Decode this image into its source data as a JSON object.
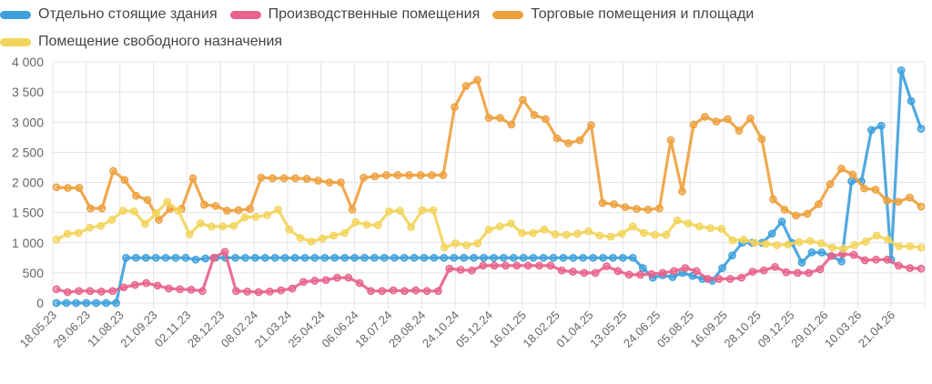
{
  "chart_data": {
    "type": "line",
    "title": "",
    "xlabel": "",
    "ylabel": "",
    "ylim": [
      0,
      4000
    ],
    "y_ticks": [
      "0",
      "500",
      "1 000",
      "1 500",
      "2 000",
      "2 500",
      "3 000",
      "3 500",
      "4 000"
    ],
    "grid": true,
    "legend_position": "top",
    "x_tick_labels": [
      "18.05.23",
      "29.06.23",
      "11.08.23",
      "21.09.23",
      "02.11.23",
      "28.12.23",
      "08.02.24",
      "21.03.24",
      "25.04.24",
      "06.06.24",
      "18.07.24",
      "29.08.24",
      "24.10.24",
      "05.12.24",
      "16.01.25",
      "18.02.25",
      "01.04.25",
      "13.05.25",
      "24.06.25",
      "05.08.25",
      "16.09.25",
      "28.10.25",
      "09.12.25",
      "29.01.26",
      "10.03.26",
      "21.04.26"
    ],
    "series": [
      {
        "name": "Отдельно стоящие здания",
        "color": "#3ea0dc",
        "values": [
          0,
          0,
          0,
          0,
          0,
          0,
          0,
          750,
          750,
          750,
          750,
          750,
          750,
          750,
          720,
          740,
          750,
          750,
          750,
          750,
          750,
          750,
          750,
          750,
          750,
          750,
          750,
          750,
          750,
          750,
          750,
          750,
          750,
          750,
          750,
          750,
          750,
          750,
          750,
          750,
          750,
          750,
          750,
          750,
          750,
          750,
          750,
          750,
          750,
          750,
          750,
          750,
          750,
          750,
          750,
          750,
          750,
          750,
          750,
          580,
          420,
          460,
          430,
          500,
          450,
          400,
          370,
          580,
          790,
          1000,
          1000,
          1000,
          1150,
          1350,
          1000,
          670,
          840,
          840,
          780,
          690,
          2020,
          2020,
          2870,
          2940,
          720,
          3860,
          3350,
          2890
        ]
      },
      {
        "name": "Производственные помещения",
        "color": "#e8628a",
        "values": [
          230,
          180,
          200,
          200,
          190,
          200,
          260,
          300,
          330,
          290,
          240,
          230,
          220,
          200,
          750,
          850,
          200,
          190,
          180,
          190,
          210,
          240,
          350,
          370,
          380,
          420,
          420,
          330,
          200,
          200,
          210,
          200,
          210,
          200,
          200,
          570,
          550,
          540,
          620,
          620,
          620,
          620,
          620,
          620,
          620,
          540,
          520,
          500,
          500,
          610,
          530,
          470,
          470,
          480,
          500,
          530,
          580,
          530,
          400,
          400,
          400,
          420,
          520,
          540,
          600,
          510,
          500,
          500,
          560,
          780,
          810,
          800,
          710,
          720,
          720,
          620,
          580,
          570
        ]
      },
      {
        "name": "Торговые помещения и площади",
        "color": "#eea03d",
        "values": [
          1920,
          1910,
          1910,
          1570,
          1570,
          2190,
          2040,
          1780,
          1710,
          1380,
          1560,
          1560,
          2070,
          1630,
          1610,
          1530,
          1540,
          1560,
          2080,
          2070,
          2070,
          2070,
          2060,
          2030,
          2000,
          2000,
          1550,
          2080,
          2100,
          2120,
          2120,
          2120,
          2120,
          2120,
          2120,
          3250,
          3600,
          3700,
          3070,
          3070,
          2960,
          3370,
          3120,
          3050,
          2730,
          2650,
          2700,
          2950,
          1660,
          1640,
          1590,
          1560,
          1550,
          1570,
          2700,
          1850,
          2960,
          3090,
          3010,
          3050,
          2860,
          3060,
          2720,
          1720,
          1550,
          1450,
          1480,
          1640,
          1970,
          2230,
          2130,
          1900,
          1880,
          1700,
          1680,
          1750,
          1600
        ]
      },
      {
        "name": "Помещение свободного назначения",
        "color": "#f3d45a",
        "values": [
          1050,
          1150,
          1160,
          1250,
          1280,
          1380,
          1530,
          1520,
          1310,
          1490,
          1680,
          1530,
          1140,
          1320,
          1270,
          1270,
          1280,
          1420,
          1430,
          1460,
          1550,
          1220,
          1080,
          1020,
          1070,
          1120,
          1160,
          1340,
          1300,
          1290,
          1520,
          1530,
          1260,
          1540,
          1540,
          920,
          990,
          960,
          990,
          1220,
          1270,
          1320,
          1160,
          1160,
          1220,
          1140,
          1130,
          1150,
          1190,
          1120,
          1100,
          1150,
          1270,
          1160,
          1130,
          1130,
          1370,
          1320,
          1270,
          1240,
          1230,
          1040,
          1050,
          1000,
          980,
          960,
          970,
          1010,
          1030,
          990,
          920,
          900,
          960,
          1020,
          1120,
          1050,
          940,
          940,
          920
        ]
      }
    ]
  }
}
